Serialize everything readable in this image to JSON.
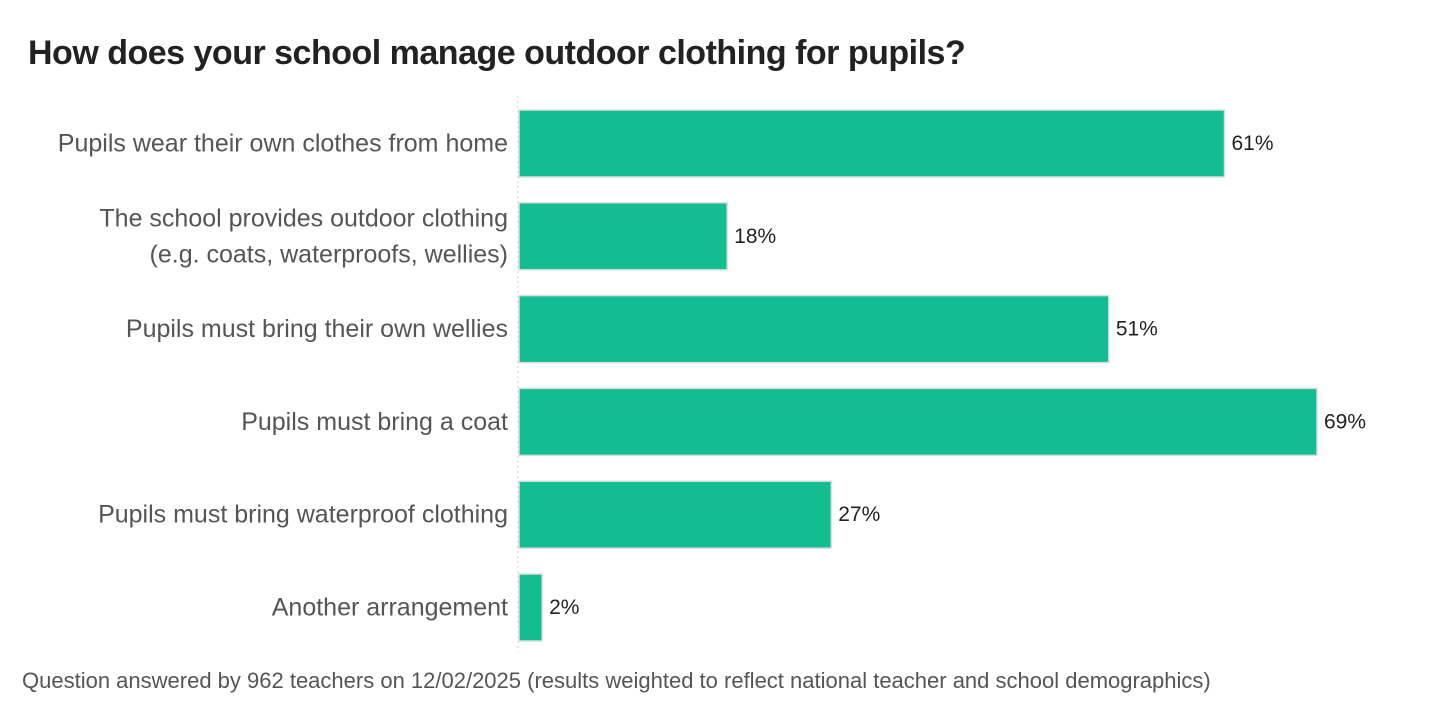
{
  "chart_data": {
    "type": "bar",
    "orientation": "horizontal",
    "title": "How does your school manage outdoor clothing for pupils?",
    "categories": [
      [
        "Pupils wear their own clothes from home"
      ],
      [
        "The school provides outdoor clothing",
        "(e.g. coats, waterproofs, wellies)"
      ],
      [
        "Pupils must bring their own wellies"
      ],
      [
        "Pupils must bring a coat"
      ],
      [
        "Pupils must bring waterproof clothing"
      ],
      [
        "Another arrangement"
      ]
    ],
    "values": [
      61,
      18,
      51,
      69,
      27,
      2
    ],
    "value_labels": [
      "61%",
      "18%",
      "51%",
      "69%",
      "27%",
      "2%"
    ],
    "unit": "%",
    "xlim": [
      0,
      69
    ],
    "grid": false,
    "legend": "none",
    "bar_color": "#12bd8f",
    "bar_border_color": "#d8dede",
    "note": "Question answered by 962 teachers on 12/02/2025 (results weighted to reflect national teacher and school demographics)"
  }
}
